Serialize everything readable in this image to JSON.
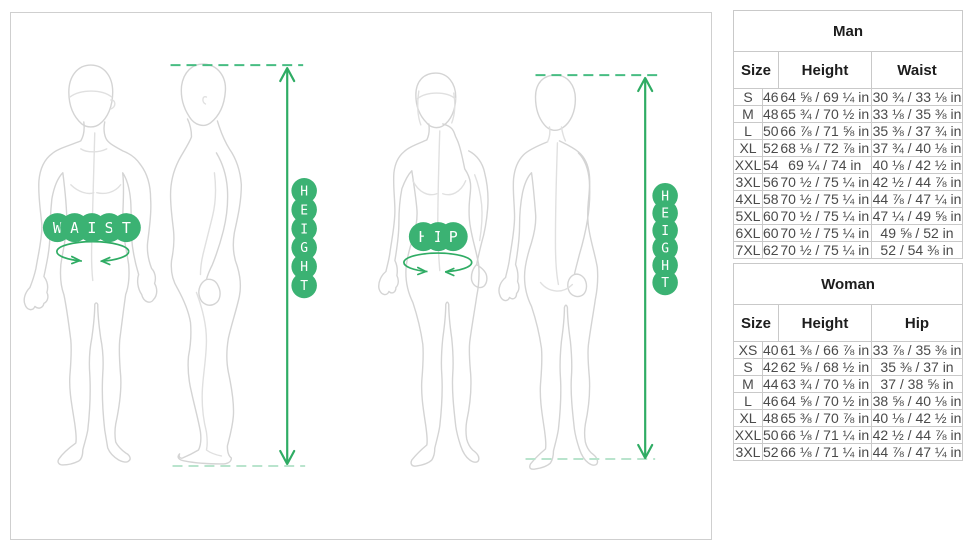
{
  "panels": [
    {
      "name": "man",
      "measure_label": "WAIST",
      "height_label": "HEIGHT"
    },
    {
      "name": "woman",
      "measure_label": "HIP",
      "height_label": "HEIGHT"
    }
  ],
  "colors": {
    "accent_green": "#3BB273",
    "dash_light_green": "#B9E4CD",
    "figure_outline_gray": "#D4D4D4",
    "table_border_gray": "#C9C9C9"
  },
  "tables": {
    "man": {
      "title": "Man",
      "columns": [
        "Size",
        "Height",
        "Waist"
      ],
      "rows": [
        {
          "size": "S",
          "num": "46",
          "height": "64 ⅝ / 69 ¼ in",
          "measure": "30 ¾ / 33 ⅛ in"
        },
        {
          "size": "M",
          "num": "48",
          "height": "65 ¾ / 70 ½ in",
          "measure": "33 ⅛ / 35 ⅜ in"
        },
        {
          "size": "L",
          "num": "50",
          "height": "66 ⅞ / 71 ⅝ in",
          "measure": "35 ⅜ / 37 ¾ in"
        },
        {
          "size": "XL",
          "num": "52",
          "height": "68 ⅛ / 72 ⅞ in",
          "measure": "37 ¾ / 40 ⅛ in"
        },
        {
          "size": "XXL",
          "num": "54",
          "height": "69 ¼ / 74 in",
          "measure": "40 ⅛ / 42 ½ in"
        },
        {
          "size": "3XL",
          "num": "56",
          "height": "70 ½ / 75 ¼ in",
          "measure": "42 ½ / 44 ⅞ in"
        },
        {
          "size": "4XL",
          "num": "58",
          "height": "70 ½ / 75 ¼ in",
          "measure": "44 ⅞ / 47 ¼ in"
        },
        {
          "size": "5XL",
          "num": "60",
          "height": "70 ½ / 75 ¼ in",
          "measure": "47 ¼ / 49 ⅝ in"
        },
        {
          "size": "6XL",
          "num": "60",
          "height": "70 ½ / 75 ¼ in",
          "measure": "49 ⅝ / 52 in"
        },
        {
          "size": "7XL",
          "num": "62",
          "height": "70 ½ / 75 ¼ in",
          "measure": "52 / 54 ⅜ in"
        }
      ]
    },
    "woman": {
      "title": "Woman",
      "columns": [
        "Size",
        "Height",
        "Hip"
      ],
      "rows": [
        {
          "size": "XS",
          "num": "40",
          "height": "61 ⅜ / 66 ⅞ in",
          "measure": "33 ⅞ / 35 ⅜ in"
        },
        {
          "size": "S",
          "num": "42",
          "height": "62 ⅝ / 68 ½ in",
          "measure": "35 ⅜ / 37 in"
        },
        {
          "size": "M",
          "num": "44",
          "height": "63 ¾ / 70 ⅛ in",
          "measure": "37 / 38 ⅝ in"
        },
        {
          "size": "L",
          "num": "46",
          "height": "64 ⅝ / 70 ½ in",
          "measure": "38 ⅝ / 40 ⅛ in"
        },
        {
          "size": "XL",
          "num": "48",
          "height": "65 ⅜ / 70 ⅞ in",
          "measure": "40 ⅛ / 42 ½ in"
        },
        {
          "size": "XXL",
          "num": "50",
          "height": "66 ⅛ / 71 ¼ in",
          "measure": "42 ½ / 44 ⅞ in"
        },
        {
          "size": "3XL",
          "num": "52",
          "height": "66 ⅛ / 71 ¼ in",
          "measure": "44 ⅞ / 47 ¼ in"
        }
      ]
    }
  }
}
